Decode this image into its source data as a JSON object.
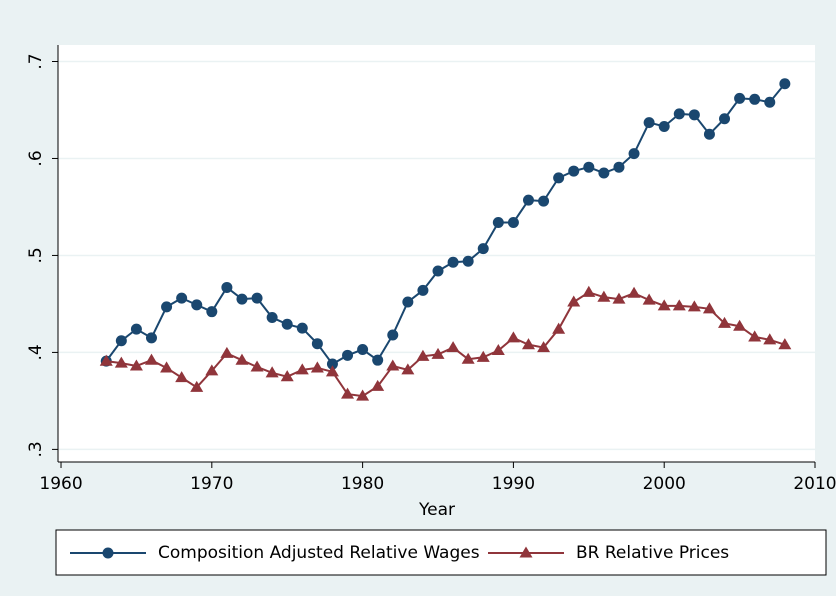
{
  "chart_data": {
    "type": "line",
    "x": [
      1963,
      1964,
      1965,
      1966,
      1967,
      1968,
      1969,
      1970,
      1971,
      1972,
      1973,
      1974,
      1975,
      1976,
      1977,
      1978,
      1979,
      1980,
      1981,
      1982,
      1983,
      1984,
      1985,
      1986,
      1987,
      1988,
      1989,
      1990,
      1991,
      1992,
      1993,
      1994,
      1995,
      1996,
      1997,
      1998,
      1999,
      2000,
      2001,
      2002,
      2003,
      2004,
      2005,
      2006,
      2007,
      2008
    ],
    "series": [
      {
        "name": "Composition Adjusted Relative Wages",
        "color": "#1a476f",
        "marker": "circle",
        "values": [
          0.391,
          0.412,
          0.424,
          0.415,
          0.447,
          0.456,
          0.449,
          0.442,
          0.467,
          0.455,
          0.456,
          0.436,
          0.429,
          0.425,
          0.409,
          0.388,
          0.397,
          0.403,
          0.392,
          0.418,
          0.452,
          0.464,
          0.484,
          0.493,
          0.494,
          0.507,
          0.534,
          0.534,
          0.557,
          0.556,
          0.58,
          0.587,
          0.591,
          0.585,
          0.591,
          0.605,
          0.637,
          0.633,
          0.646,
          0.645,
          0.625,
          0.641,
          0.662,
          0.661,
          0.658,
          0.677
        ]
      },
      {
        "name": "BR Relative Prices",
        "color": "#90353b",
        "marker": "triangle",
        "values": [
          0.391,
          0.389,
          0.386,
          0.392,
          0.384,
          0.374,
          0.364,
          0.381,
          0.399,
          0.392,
          0.385,
          0.379,
          0.375,
          0.382,
          0.384,
          0.38,
          0.357,
          0.355,
          0.365,
          0.386,
          0.382,
          0.396,
          0.398,
          0.405,
          0.393,
          0.395,
          0.402,
          0.415,
          0.408,
          0.405,
          0.424,
          0.452,
          0.462,
          0.457,
          0.455,
          0.461,
          0.454,
          0.448,
          0.448,
          0.447,
          0.445,
          0.43,
          0.427,
          0.416,
          0.413,
          0.408
        ]
      }
    ],
    "x_label": "Year",
    "xlim": [
      1959.8,
      2010
    ],
    "xticks": [
      1960,
      1970,
      1980,
      1990,
      2000,
      2010
    ],
    "ylim": [
      0.287,
      0.717
    ],
    "yticks": [
      {
        "value": 0.3,
        "label": ".3"
      },
      {
        "value": 0.4,
        "label": ".4"
      },
      {
        "value": 0.5,
        "label": ".5"
      },
      {
        "value": 0.6,
        "label": ".6"
      },
      {
        "value": 0.7,
        "label": ".7"
      }
    ],
    "grid": true,
    "legend": "bottom"
  }
}
